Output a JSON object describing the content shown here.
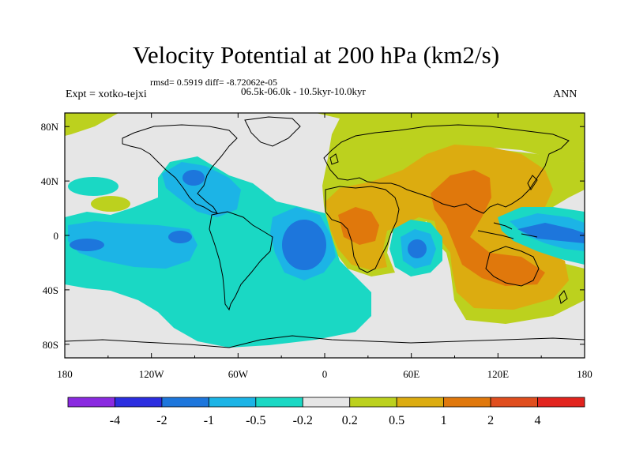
{
  "title": "Velocity Potential at 200 hPa (km2/s)",
  "stats": "rmsd= 0.5919 diff= -8.72062e-05",
  "experiment": "Expt = xotko-tejxi",
  "period": "06.5k-06.0k - 10.5kyr-10.0kyr",
  "season": "ANN",
  "axes": {
    "x_ticks": [
      {
        "lon": -180,
        "label": "180"
      },
      {
        "lon": -120,
        "label": "120W"
      },
      {
        "lon": -60,
        "label": "60W"
      },
      {
        "lon": 0,
        "label": "0"
      },
      {
        "lon": 60,
        "label": "60E"
      },
      {
        "lon": 120,
        "label": "120E"
      },
      {
        "lon": 180,
        "label": "180"
      }
    ],
    "y_ticks": [
      {
        "lat": 80,
        "label": "80N"
      },
      {
        "lat": 40,
        "label": "40N"
      },
      {
        "lat": 0,
        "label": "0"
      },
      {
        "lat": -40,
        "label": "40S"
      },
      {
        "lat": -80,
        "label": "80S"
      }
    ],
    "lon_range": [
      -180,
      180
    ],
    "lat_range": [
      -90,
      90
    ]
  },
  "colorbar": {
    "colors": [
      "#8a2ae0",
      "#2c2ee0",
      "#1d76dc",
      "#1cb4e6",
      "#1ad8c4",
      "#e6e6e6",
      "#bcd11e",
      "#dcac10",
      "#e0780c",
      "#e04e1e",
      "#e2241e"
    ],
    "labels": [
      "-4",
      "-2",
      "-1",
      "-0.5",
      "-0.2",
      "0.2",
      "0.5",
      "1",
      "2",
      "4"
    ]
  },
  "palette": {
    "land_outline": "#000000",
    "neutral": "#e6e6e6"
  }
}
